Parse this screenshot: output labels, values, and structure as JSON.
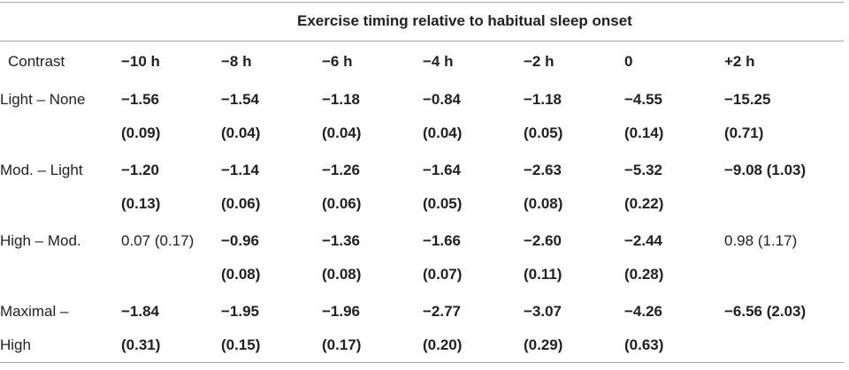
{
  "spanner": "Exercise timing relative to habitual sleep onset",
  "columns": [
    "Contrast",
    "−10 h",
    "−8 h",
    "−6 h",
    "−4 h",
    "−2 h",
    "0",
    "+2 h"
  ],
  "rows": [
    {
      "label_line1": "Light – None",
      "label_line2": "",
      "cells": [
        {
          "est": "−1.56",
          "se": "(0.09)",
          "inline": false,
          "bold": true
        },
        {
          "est": "−1.54",
          "se": "(0.04)",
          "inline": false,
          "bold": true
        },
        {
          "est": "−1.18",
          "se": "(0.04)",
          "inline": false,
          "bold": true
        },
        {
          "est": "−0.84",
          "se": "(0.04)",
          "inline": false,
          "bold": true
        },
        {
          "est": "−1.18",
          "se": "(0.05)",
          "inline": false,
          "bold": true
        },
        {
          "est": "−4.55",
          "se": "(0.14)",
          "inline": false,
          "bold": true
        },
        {
          "est": "−15.25",
          "se": "(0.71)",
          "inline": false,
          "bold": true
        }
      ]
    },
    {
      "label_line1": "Mod. – Light",
      "label_line2": "",
      "cells": [
        {
          "est": "−1.20",
          "se": "(0.13)",
          "inline": false,
          "bold": true
        },
        {
          "est": "−1.14",
          "se": "(0.06)",
          "inline": false,
          "bold": true
        },
        {
          "est": "−1.26",
          "se": "(0.06)",
          "inline": false,
          "bold": true
        },
        {
          "est": "−1.64",
          "se": "(0.05)",
          "inline": false,
          "bold": true
        },
        {
          "est": "−2.63",
          "se": "(0.08)",
          "inline": false,
          "bold": true
        },
        {
          "est": "−5.32",
          "se": "(0.22)",
          "inline": false,
          "bold": true
        },
        {
          "est": "−9.08",
          "se": "(1.03)",
          "inline": true,
          "bold": true
        }
      ]
    },
    {
      "label_line1": "High – Mod.",
      "label_line2": "",
      "cells": [
        {
          "est": "0.07",
          "se": "(0.17)",
          "inline": true,
          "bold": false
        },
        {
          "est": "−0.96",
          "se": "(0.08)",
          "inline": false,
          "bold": true
        },
        {
          "est": "−1.36",
          "se": "(0.08)",
          "inline": false,
          "bold": true
        },
        {
          "est": "−1.66",
          "se": "(0.07)",
          "inline": false,
          "bold": true
        },
        {
          "est": "−2.60",
          "se": "(0.11)",
          "inline": false,
          "bold": true
        },
        {
          "est": "−2.44",
          "se": "(0.28)",
          "inline": false,
          "bold": true
        },
        {
          "est": "0.98",
          "se": "(1.17)",
          "inline": true,
          "bold": false
        }
      ]
    },
    {
      "label_line1": "Maximal –",
      "label_line2": "High",
      "cells": [
        {
          "est": "−1.84",
          "se": "(0.31)",
          "inline": false,
          "bold": true
        },
        {
          "est": "−1.95",
          "se": "(0.15)",
          "inline": false,
          "bold": true
        },
        {
          "est": "−1.96",
          "se": "(0.17)",
          "inline": false,
          "bold": true
        },
        {
          "est": "−2.77",
          "se": "(0.20)",
          "inline": false,
          "bold": true
        },
        {
          "est": "−3.07",
          "se": "(0.29)",
          "inline": false,
          "bold": true
        },
        {
          "est": "−4.26",
          "se": "(0.63)",
          "inline": false,
          "bold": true
        },
        {
          "est": "−6.56",
          "se": "(2.03)",
          "inline": true,
          "bold": true
        }
      ]
    }
  ]
}
